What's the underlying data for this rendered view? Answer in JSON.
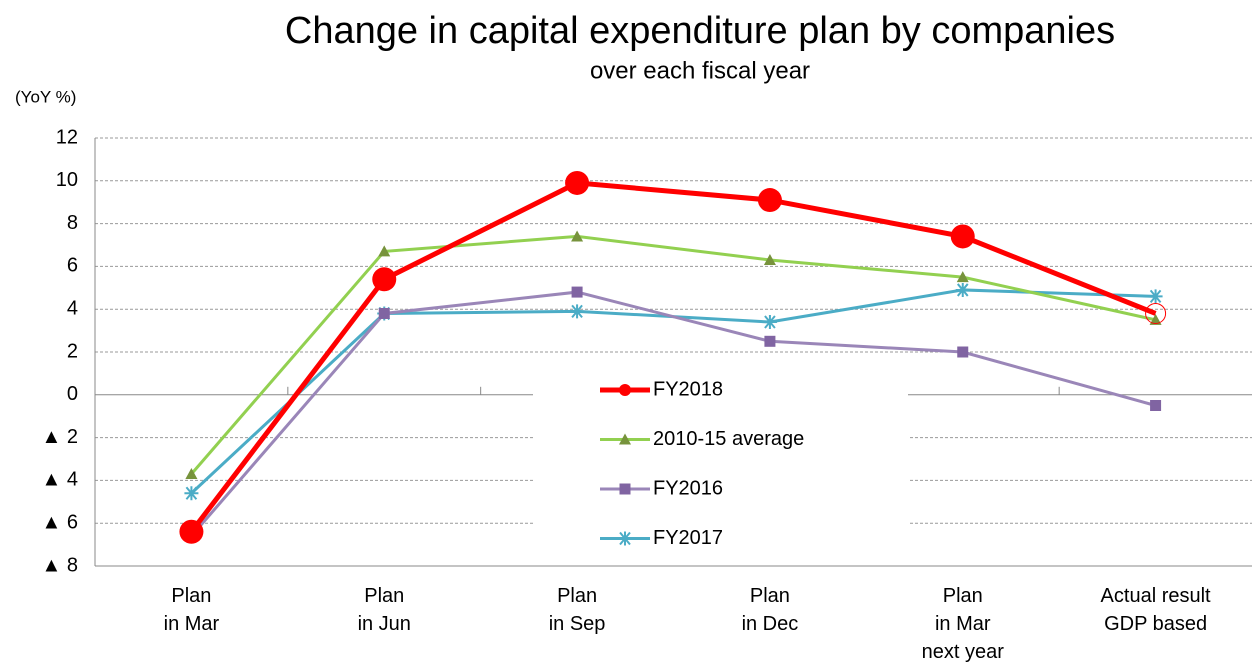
{
  "chart_data": {
    "type": "line",
    "title": "Change in capital expenditure plan by companies",
    "subtitle": "over each fiscal year",
    "y_axis_label": "(YoY %)",
    "categories": [
      "Plan\nin Mar",
      "Plan\nin Jun",
      "Plan\nin Sep",
      "Plan\nin Dec",
      "Plan\nin Mar\nnext year",
      "Actual result\nGDP based"
    ],
    "series": [
      {
        "name": "FY2018",
        "color": "#ff0000",
        "marker": "circle",
        "values": [
          -6.4,
          5.4,
          9.9,
          9.1,
          7.4,
          3.8
        ]
      },
      {
        "name": "2010-15 average",
        "color": "#92d050",
        "marker": "triangle",
        "values": [
          -3.7,
          6.7,
          7.4,
          6.3,
          5.5,
          3.5
        ]
      },
      {
        "name": "FY2016",
        "color": "#9a86b8",
        "marker": "square",
        "values": [
          -6.6,
          3.8,
          4.8,
          2.5,
          2.0,
          -0.5
        ]
      },
      {
        "name": "FY2017",
        "color": "#4bacc6",
        "marker": "asterisk",
        "values": [
          -4.6,
          3.8,
          3.9,
          3.4,
          4.9,
          4.6
        ]
      }
    ],
    "ylim": [
      -8,
      12
    ],
    "yticks": [
      {
        "value": -8,
        "label": "▲ 8"
      },
      {
        "value": -6,
        "label": "▲ 6"
      },
      {
        "value": -4,
        "label": "▲ 4"
      },
      {
        "value": -2,
        "label": "▲ 2"
      },
      0,
      2,
      4,
      6,
      8,
      10,
      12
    ],
    "grid": true,
    "legend": "center"
  }
}
